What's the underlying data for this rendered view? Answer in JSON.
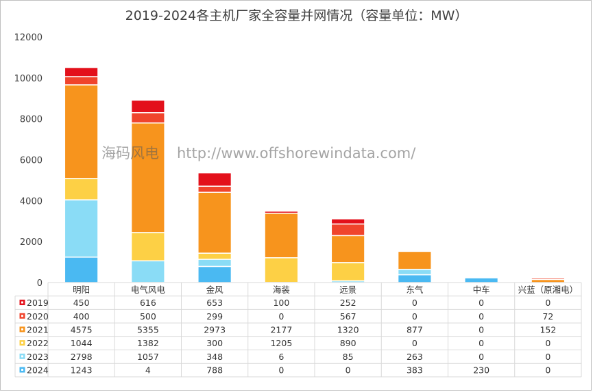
{
  "title": "2019-2024各主机厂家全容量并网情况（容量单位：MW）",
  "watermark": {
    "brand": "海码风电",
    "url": "http://www.offshorewindata.com/"
  },
  "colors": {
    "2019": "#e3101b",
    "2020": "#f0442c",
    "2021": "#f7941d",
    "2022": "#fdd045",
    "2023": "#8adcf6",
    "2024": "#4ab9f2"
  },
  "chart_data": {
    "type": "bar",
    "stacked": true,
    "categories": [
      "明阳",
      "电气风电",
      "金风",
      "海装",
      "远景",
      "东气",
      "中车",
      "兴蓝（原湘电）"
    ],
    "series": [
      {
        "name": "2019",
        "values": [
          450,
          616,
          653,
          100,
          252,
          0,
          0,
          0
        ]
      },
      {
        "name": "2020",
        "values": [
          400,
          500,
          299,
          0,
          567,
          0,
          0,
          72
        ]
      },
      {
        "name": "2021",
        "values": [
          4575,
          5355,
          2973,
          2177,
          1320,
          877,
          0,
          152
        ]
      },
      {
        "name": "2022",
        "values": [
          1044,
          1382,
          300,
          1205,
          890,
          0,
          0,
          0
        ]
      },
      {
        "name": "2023",
        "values": [
          2798,
          1057,
          348,
          6,
          85,
          263,
          0,
          0
        ]
      },
      {
        "name": "2024",
        "values": [
          1243,
          4,
          788,
          0,
          0,
          383,
          230,
          0
        ]
      }
    ],
    "ylim": [
      0,
      12000
    ],
    "yticks": [
      0,
      2000,
      4000,
      6000,
      8000,
      10000,
      12000
    ],
    "grid": false,
    "legend": "data-table"
  }
}
